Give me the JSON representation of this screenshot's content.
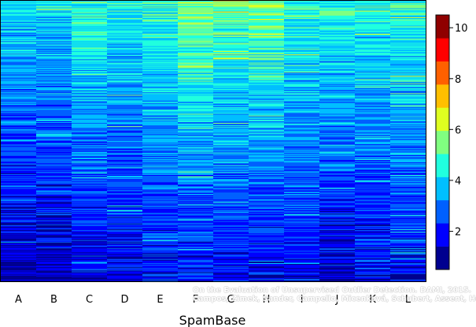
{
  "chart_data": {
    "type": "heatmap",
    "xlabel": "SpamBase",
    "categories": [
      "A",
      "B",
      "C",
      "D",
      "E",
      "F",
      "G",
      "H",
      "I",
      "J",
      "K",
      "L"
    ],
    "rows": 340,
    "colorbar": {
      "min": 0.5,
      "max": 10.5,
      "ticks": [
        2,
        4,
        6,
        8,
        10
      ],
      "colors": [
        "#00008f",
        "#0000ff",
        "#0060ff",
        "#00bfff",
        "#20ffdf",
        "#80ff80",
        "#dfff20",
        "#ffbf00",
        "#ff6000",
        "#ff0000",
        "#8f0000"
      ]
    },
    "column_profiles": [
      {
        "name": "A",
        "top": 4.2,
        "bottom": 1.2
      },
      {
        "name": "B",
        "top": 4.2,
        "bottom": 1.2
      },
      {
        "name": "C",
        "top": 4.8,
        "bottom": 1.5
      },
      {
        "name": "D",
        "top": 4.5,
        "bottom": 1.6
      },
      {
        "name": "E",
        "top": 4.8,
        "bottom": 1.8
      },
      {
        "name": "F",
        "top": 5.6,
        "bottom": 1.8
      },
      {
        "name": "G",
        "top": 5.3,
        "bottom": 1.7
      },
      {
        "name": "H",
        "top": 5.6,
        "bottom": 1.5
      },
      {
        "name": "I",
        "top": 4.8,
        "bottom": 1.8
      },
      {
        "name": "J",
        "top": 4.7,
        "bottom": 1.3
      },
      {
        "name": "K",
        "top": 4.5,
        "bottom": 1.6
      },
      {
        "name": "L",
        "top": 4.9,
        "bottom": 1.7
      }
    ]
  },
  "credit": {
    "line1": "On the Evaluation of Unsupervised Outlier Detection. DAMI, 2015.",
    "line2": "Campos, Zimek, Sander, Campello, Micenková, Schubert, Assent, Houle"
  }
}
